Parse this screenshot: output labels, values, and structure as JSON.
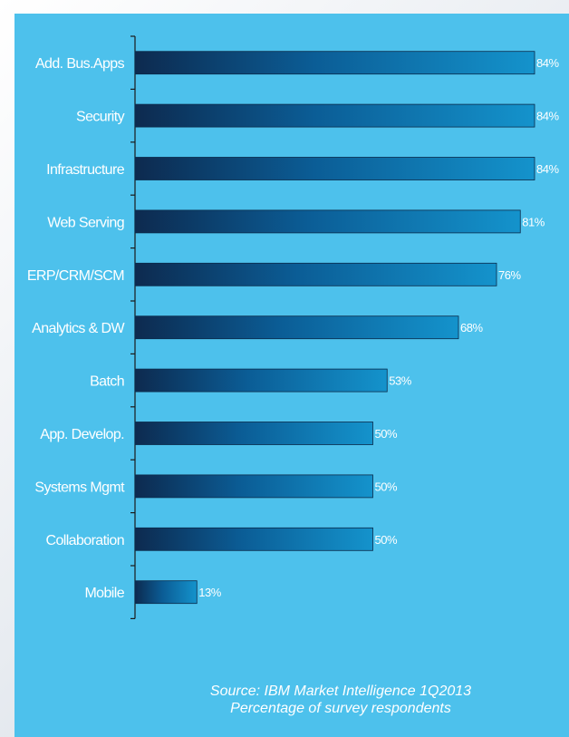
{
  "chart_data": {
    "type": "bar",
    "orientation": "horizontal",
    "categories": [
      "Add. Bus.Apps",
      "Security",
      "Infrastructure",
      "Web Serving",
      "ERP/CRM/SCM",
      "Analytics & DW",
      "Batch",
      "App. Develop.",
      "Systems Mgmt",
      "Collaboration",
      "Mobile"
    ],
    "values": [
      84,
      84,
      84,
      81,
      76,
      68,
      53,
      50,
      50,
      50,
      13
    ],
    "value_labels": [
      "84%",
      "84%",
      "84%",
      "81%",
      "76%",
      "68%",
      "53%",
      "50%",
      "50%",
      "50%",
      "13%"
    ],
    "xlim": [
      0,
      84
    ],
    "grid": false,
    "colors": {
      "panel": "#4dc1ec",
      "bar_dark": "#0d2a4f",
      "bar_mid": "#0b5d96",
      "bar_light": "#1493cc"
    }
  },
  "source": {
    "line1": "Source: IBM Market Intelligence 1Q2013",
    "line2": "Percentage of survey respondents"
  }
}
